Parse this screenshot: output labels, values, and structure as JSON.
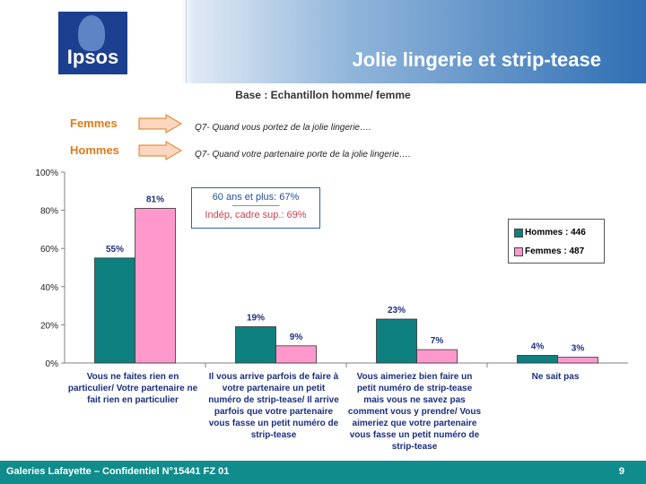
{
  "header": {
    "title": "Jolie lingerie et strip-tease",
    "logo_text": "Ipsos"
  },
  "base": "Base : Echantillon homme/ femme",
  "questions": [
    {
      "label": "Femmes",
      "text": "Q7- Quand vous portez de la jolie lingerie…."
    },
    {
      "label": "Hommes",
      "text": "Q7- Quand votre partenaire porte de la jolie lingerie…."
    }
  ],
  "annotation": {
    "line1": "60 ans et plus: 67%",
    "separator": "---------------------",
    "line2": "Indép, cadre sup.: 69%"
  },
  "legend": {
    "hommes": "Hommes : 446",
    "femmes": "Femmes : 487"
  },
  "colors": {
    "hommes": "#0f8080",
    "femmes": "#ff99cc",
    "arrow_fill": "#fbd7c0",
    "arrow_stroke": "#e07b18"
  },
  "footer": {
    "text": "Galeries Lafayette – Confidentiel N°15441 FZ 01",
    "page": "9"
  },
  "chart_data": {
    "type": "bar",
    "categories": [
      "Vous ne faites rien en particulier/ Votre partenaire ne fait rien en particulier",
      "Il vous arrive parfois de faire à votre partenaire un petit numéro de strip-tease/ Il arrive parfois que votre partenaire vous fasse un petit numéro de strip-tease",
      "Vous aimeriez bien faire un petit numéro de strip-tease mais vous ne savez pas comment vous y prendre/ Vous aimeriez que votre partenaire vous fasse un petit numéro de strip-tease",
      "Ne sait pas"
    ],
    "series": [
      {
        "name": "Hommes : 446",
        "values": [
          55,
          19,
          23,
          4
        ]
      },
      {
        "name": "Femmes : 487",
        "values": [
          81,
          9,
          7,
          3
        ]
      }
    ],
    "data_labels": [
      [
        "55%",
        "19%",
        "23%",
        "4%"
      ],
      [
        "81%",
        "9%",
        "7%",
        "3%"
      ]
    ],
    "yticks": [
      "0%",
      "20%",
      "40%",
      "60%",
      "80%",
      "100%"
    ],
    "ylim": [
      0,
      100
    ],
    "legend_position": "right"
  }
}
